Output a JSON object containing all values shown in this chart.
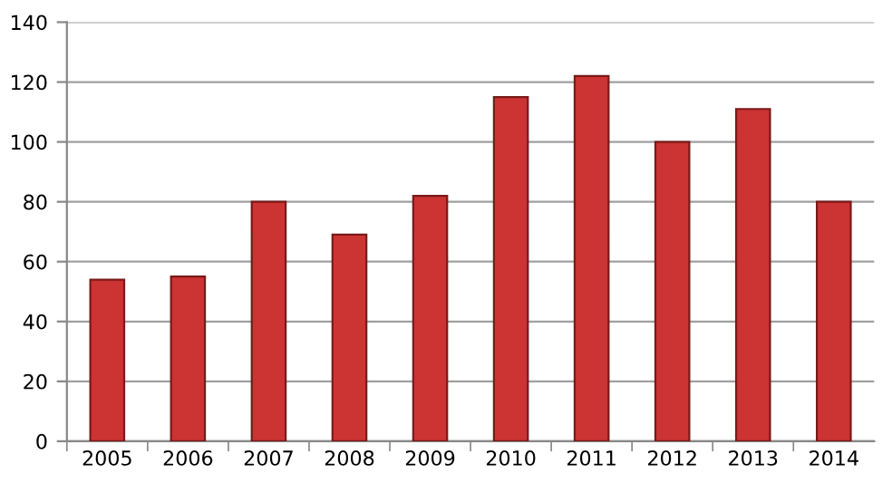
{
  "chart_data": {
    "type": "bar",
    "categories": [
      "2005",
      "2006",
      "2007",
      "2008",
      "2009",
      "2010",
      "2011",
      "2012",
      "2013",
      "2014"
    ],
    "values": [
      54,
      55,
      80,
      69,
      82,
      115,
      122,
      100,
      111,
      80
    ],
    "color": "#cc3333",
    "ylim": [
      0,
      140
    ],
    "yticks": [
      0,
      20,
      40,
      60,
      80,
      100,
      120,
      140
    ],
    "grid": "y",
    "legend": false
  }
}
